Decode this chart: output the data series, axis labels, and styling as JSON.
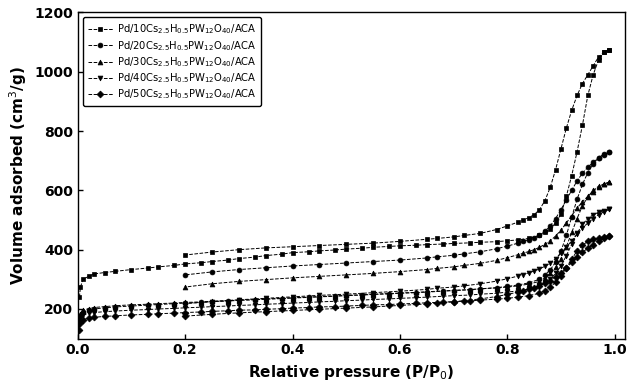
{
  "title": "",
  "xlabel": "Relative pressure (P/P$_0$)",
  "ylabel": "Volume adsorbed (cm$^3$/g)",
  "xlim": [
    0,
    1.02
  ],
  "ylim": [
    100,
    1200
  ],
  "yticks": [
    200,
    400,
    600,
    800,
    1000,
    1200
  ],
  "xticks": [
    0.0,
    0.2,
    0.4,
    0.6,
    0.8,
    1.0
  ],
  "legend_labels": [
    "Pd/10Cs$_{2.5}$H$_{0.5}$PW$_{12}$O$_{40}$/ACA",
    "Pd/20Cs$_{2.5}$H$_{0.5}$PW$_{12}$O$_{40}$/ACA",
    "Pd/30Cs$_{2.5}$H$_{0.5}$PW$_{12}$O$_{40}$/ACA",
    "Pd/40Cs$_{2.5}$H$_{0.5}$PW$_{12}$O$_{40}$/ACA",
    "Pd/50Cs$_{2.5}$H$_{0.5}$PW$_{12}$O$_{40}$/ACA"
  ],
  "markers": [
    "s",
    "o",
    "^",
    "v",
    "D"
  ],
  "series": {
    "Pd10": {
      "adsorption_x": [
        0.003,
        0.005,
        0.01,
        0.02,
        0.03,
        0.05,
        0.07,
        0.1,
        0.13,
        0.15,
        0.18,
        0.2,
        0.23,
        0.25,
        0.28,
        0.3,
        0.33,
        0.35,
        0.38,
        0.4,
        0.43,
        0.45,
        0.48,
        0.5,
        0.53,
        0.55,
        0.58,
        0.6,
        0.63,
        0.65,
        0.68,
        0.7,
        0.73,
        0.75,
        0.78,
        0.8,
        0.82,
        0.84,
        0.86,
        0.87,
        0.88,
        0.89,
        0.9,
        0.91,
        0.92,
        0.93,
        0.94,
        0.95,
        0.96,
        0.97,
        0.98,
        0.99
      ],
      "adsorption_y": [
        240,
        275,
        300,
        310,
        318,
        323,
        327,
        333,
        338,
        342,
        347,
        352,
        356,
        360,
        365,
        370,
        375,
        380,
        385,
        390,
        393,
        396,
        399,
        402,
        405,
        408,
        411,
        413,
        415,
        417,
        419,
        421,
        423,
        425,
        427,
        430,
        433,
        438,
        448,
        458,
        470,
        490,
        520,
        580,
        650,
        730,
        820,
        920,
        990,
        1040,
        1065,
        1075
      ],
      "desorption_x": [
        0.99,
        0.98,
        0.97,
        0.96,
        0.95,
        0.94,
        0.93,
        0.92,
        0.91,
        0.9,
        0.89,
        0.88,
        0.87,
        0.86,
        0.85,
        0.84,
        0.83,
        0.82,
        0.8,
        0.78,
        0.75,
        0.72,
        0.7,
        0.67,
        0.65,
        0.6,
        0.55,
        0.5,
        0.45,
        0.4,
        0.35,
        0.3,
        0.25,
        0.2
      ],
      "desorption_y": [
        1075,
        1065,
        1050,
        1020,
        990,
        960,
        920,
        870,
        810,
        740,
        670,
        610,
        565,
        535,
        518,
        508,
        500,
        493,
        480,
        468,
        455,
        448,
        443,
        438,
        435,
        428,
        422,
        418,
        414,
        410,
        406,
        400,
        392,
        382
      ]
    },
    "Pd20": {
      "adsorption_x": [
        0.003,
        0.005,
        0.01,
        0.02,
        0.03,
        0.05,
        0.07,
        0.1,
        0.13,
        0.15,
        0.18,
        0.2,
        0.23,
        0.25,
        0.28,
        0.3,
        0.33,
        0.35,
        0.38,
        0.4,
        0.43,
        0.45,
        0.48,
        0.5,
        0.53,
        0.55,
        0.58,
        0.6,
        0.63,
        0.65,
        0.68,
        0.7,
        0.73,
        0.75,
        0.78,
        0.8,
        0.82,
        0.84,
        0.86,
        0.87,
        0.88,
        0.89,
        0.9,
        0.91,
        0.92,
        0.93,
        0.94,
        0.95,
        0.96,
        0.97,
        0.98,
        0.99
      ],
      "adsorption_y": [
        155,
        178,
        190,
        196,
        200,
        204,
        207,
        210,
        213,
        215,
        218,
        220,
        222,
        225,
        227,
        229,
        231,
        233,
        235,
        237,
        239,
        241,
        243,
        245,
        247,
        249,
        251,
        253,
        255,
        257,
        260,
        262,
        265,
        268,
        272,
        276,
        281,
        288,
        300,
        315,
        332,
        358,
        395,
        448,
        510,
        570,
        620,
        660,
        690,
        710,
        722,
        728
      ],
      "desorption_x": [
        0.99,
        0.98,
        0.97,
        0.96,
        0.95,
        0.94,
        0.93,
        0.92,
        0.91,
        0.9,
        0.89,
        0.88,
        0.87,
        0.86,
        0.85,
        0.84,
        0.83,
        0.82,
        0.8,
        0.78,
        0.75,
        0.72,
        0.7,
        0.67,
        0.65,
        0.6,
        0.55,
        0.5,
        0.45,
        0.4,
        0.35,
        0.3,
        0.25,
        0.2
      ],
      "desorption_y": [
        728,
        720,
        710,
        695,
        678,
        658,
        632,
        600,
        568,
        535,
        505,
        480,
        462,
        450,
        441,
        434,
        428,
        422,
        412,
        403,
        393,
        386,
        381,
        376,
        372,
        365,
        360,
        355,
        350,
        345,
        339,
        333,
        325,
        315
      ]
    },
    "Pd30": {
      "adsorption_x": [
        0.003,
        0.005,
        0.01,
        0.02,
        0.03,
        0.05,
        0.07,
        0.1,
        0.13,
        0.15,
        0.18,
        0.2,
        0.23,
        0.25,
        0.28,
        0.3,
        0.33,
        0.35,
        0.38,
        0.4,
        0.43,
        0.45,
        0.48,
        0.5,
        0.53,
        0.55,
        0.58,
        0.6,
        0.63,
        0.65,
        0.68,
        0.7,
        0.73,
        0.75,
        0.78,
        0.8,
        0.82,
        0.84,
        0.86,
        0.87,
        0.88,
        0.89,
        0.9,
        0.91,
        0.92,
        0.93,
        0.94,
        0.95,
        0.96,
        0.97,
        0.98,
        0.99
      ],
      "adsorption_y": [
        158,
        182,
        196,
        201,
        205,
        208,
        211,
        214,
        216,
        218,
        220,
        222,
        224,
        226,
        228,
        230,
        232,
        234,
        236,
        238,
        240,
        242,
        244,
        246,
        248,
        250,
        252,
        254,
        256,
        258,
        261,
        263,
        265,
        268,
        271,
        274,
        278,
        284,
        293,
        305,
        320,
        340,
        370,
        410,
        458,
        505,
        548,
        578,
        600,
        614,
        622,
        628
      ],
      "desorption_x": [
        0.99,
        0.98,
        0.97,
        0.96,
        0.95,
        0.94,
        0.93,
        0.92,
        0.91,
        0.9,
        0.89,
        0.88,
        0.87,
        0.86,
        0.85,
        0.84,
        0.83,
        0.82,
        0.8,
        0.78,
        0.75,
        0.72,
        0.7,
        0.67,
        0.65,
        0.6,
        0.55,
        0.5,
        0.45,
        0.4,
        0.35,
        0.3,
        0.25,
        0.2
      ],
      "desorption_y": [
        628,
        620,
        610,
        596,
        580,
        562,
        540,
        515,
        490,
        466,
        446,
        430,
        418,
        408,
        400,
        394,
        388,
        383,
        373,
        364,
        354,
        347,
        342,
        337,
        333,
        326,
        320,
        315,
        310,
        305,
        299,
        293,
        285,
        274
      ]
    },
    "Pd40": {
      "adsorption_x": [
        0.003,
        0.005,
        0.01,
        0.02,
        0.03,
        0.05,
        0.07,
        0.1,
        0.13,
        0.15,
        0.18,
        0.2,
        0.23,
        0.25,
        0.28,
        0.3,
        0.33,
        0.35,
        0.38,
        0.4,
        0.43,
        0.45,
        0.48,
        0.5,
        0.53,
        0.55,
        0.58,
        0.6,
        0.63,
        0.65,
        0.68,
        0.7,
        0.73,
        0.75,
        0.78,
        0.8,
        0.82,
        0.84,
        0.86,
        0.87,
        0.88,
        0.89,
        0.9,
        0.91,
        0.92,
        0.93,
        0.94,
        0.95,
        0.96,
        0.97,
        0.98,
        0.99
      ],
      "adsorption_y": [
        148,
        168,
        180,
        185,
        188,
        191,
        193,
        196,
        198,
        200,
        202,
        204,
        206,
        208,
        210,
        212,
        214,
        216,
        218,
        220,
        222,
        224,
        226,
        228,
        230,
        232,
        234,
        236,
        238,
        240,
        243,
        245,
        247,
        250,
        253,
        257,
        261,
        267,
        276,
        287,
        301,
        320,
        345,
        380,
        418,
        455,
        485,
        505,
        518,
        526,
        532,
        536
      ],
      "desorption_x": [
        0.99,
        0.98,
        0.97,
        0.96,
        0.95,
        0.94,
        0.93,
        0.92,
        0.91,
        0.9,
        0.89,
        0.88,
        0.87,
        0.86,
        0.85,
        0.84,
        0.83,
        0.82,
        0.8,
        0.78,
        0.75,
        0.72,
        0.7,
        0.67,
        0.65,
        0.6,
        0.55,
        0.5,
        0.45,
        0.4,
        0.35,
        0.3,
        0.25,
        0.2
      ],
      "desorption_y": [
        536,
        528,
        518,
        505,
        490,
        473,
        453,
        430,
        408,
        388,
        370,
        355,
        344,
        335,
        328,
        322,
        316,
        311,
        302,
        294,
        285,
        278,
        274,
        270,
        266,
        260,
        255,
        250,
        246,
        241,
        236,
        231,
        225,
        218
      ]
    },
    "Pd50": {
      "adsorption_x": [
        0.003,
        0.005,
        0.01,
        0.02,
        0.03,
        0.05,
        0.07,
        0.1,
        0.13,
        0.15,
        0.18,
        0.2,
        0.23,
        0.25,
        0.28,
        0.3,
        0.33,
        0.35,
        0.38,
        0.4,
        0.43,
        0.45,
        0.48,
        0.5,
        0.53,
        0.55,
        0.58,
        0.6,
        0.63,
        0.65,
        0.68,
        0.7,
        0.73,
        0.75,
        0.78,
        0.8,
        0.82,
        0.84,
        0.86,
        0.87,
        0.88,
        0.89,
        0.9,
        0.91,
        0.92,
        0.93,
        0.94,
        0.95,
        0.96,
        0.97,
        0.98,
        0.99
      ],
      "adsorption_y": [
        130,
        152,
        164,
        169,
        172,
        175,
        177,
        180,
        182,
        184,
        186,
        188,
        190,
        192,
        194,
        196,
        197,
        199,
        201,
        203,
        205,
        207,
        208,
        210,
        212,
        214,
        215,
        217,
        219,
        221,
        223,
        225,
        227,
        230,
        233,
        236,
        240,
        245,
        253,
        262,
        274,
        290,
        312,
        338,
        368,
        396,
        415,
        428,
        435,
        440,
        443,
        445
      ],
      "desorption_x": [
        0.99,
        0.98,
        0.97,
        0.96,
        0.95,
        0.94,
        0.93,
        0.92,
        0.91,
        0.9,
        0.89,
        0.88,
        0.87,
        0.86,
        0.85,
        0.84,
        0.83,
        0.82,
        0.8,
        0.78,
        0.75,
        0.72,
        0.7,
        0.67,
        0.65,
        0.6,
        0.55,
        0.5,
        0.45,
        0.4,
        0.35,
        0.3,
        0.25,
        0.2
      ],
      "desorption_y": [
        445,
        438,
        428,
        417,
        405,
        391,
        375,
        357,
        339,
        322,
        308,
        296,
        286,
        279,
        272,
        267,
        262,
        257,
        249,
        242,
        234,
        228,
        224,
        220,
        217,
        212,
        207,
        203,
        199,
        195,
        191,
        187,
        182,
        176
      ]
    }
  }
}
